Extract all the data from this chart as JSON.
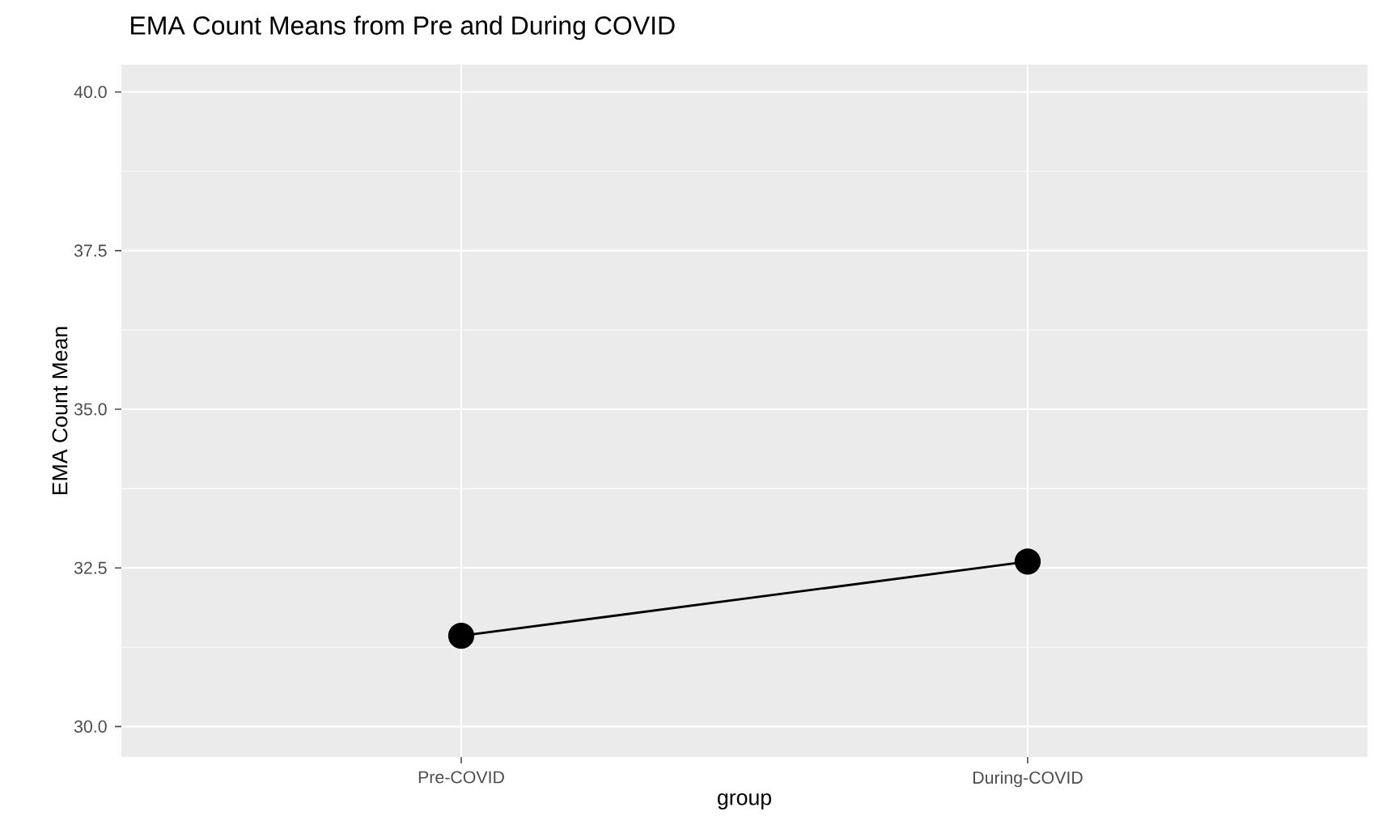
{
  "chart_data": {
    "type": "line",
    "title": "EMA Count Means from Pre and During COVID",
    "xlabel": "group",
    "ylabel": "EMA Count Mean",
    "categories": [
      "Pre-COVID",
      "During-COVID"
    ],
    "series": [
      {
        "color": "#000000",
        "values": [
          31.43,
          32.6
        ]
      }
    ],
    "ylim": [
      29.52,
      40.43
    ],
    "yticks": [
      {
        "value": 30,
        "label": "30.0"
      },
      {
        "value": 32.5,
        "label": "32.5"
      },
      {
        "value": 35,
        "label": "35.0"
      },
      {
        "value": 37.5,
        "label": "37.5"
      },
      {
        "value": 40,
        "label": "40.0"
      }
    ],
    "grid": true,
    "marker": "circle",
    "line_style": "solid"
  }
}
